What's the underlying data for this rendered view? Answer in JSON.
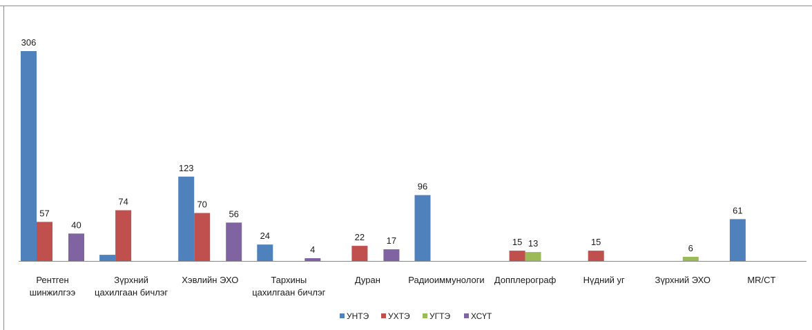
{
  "colors": {
    "border": "#8c8c8c",
    "axis": "#868686"
  },
  "chart_data": {
    "type": "bar",
    "title": "",
    "xlabel": "",
    "ylabel": "",
    "ylim": [
      0,
      320
    ],
    "grid": false,
    "legend_position": "bottom-center",
    "categories": [
      [
        "Рентген",
        "шинжилгээ"
      ],
      [
        "Зүрхний",
        "цахилгаан бичлэг"
      ],
      [
        "Хэвлийн ЭХО"
      ],
      [
        "Тархины",
        "цахилгаан бичлэг"
      ],
      [
        "Дуран"
      ],
      [
        "Радиоиммунологи"
      ],
      [
        "Допплерограф"
      ],
      [
        "Нүдний уг"
      ],
      [
        "Зүрхний ЭХО"
      ],
      [
        "MR/CT"
      ]
    ],
    "series": [
      {
        "name": "УНТЭ",
        "color": "#4f81bd",
        "values": [
          306,
          9,
          123,
          24,
          null,
          96,
          null,
          null,
          null,
          61
        ]
      },
      {
        "name": "УХТЭ",
        "color": "#c0504d",
        "values": [
          57,
          74,
          70,
          null,
          22,
          null,
          15,
          15,
          null,
          null
        ]
      },
      {
        "name": "УГТЭ",
        "color": "#9bbb59",
        "values": [
          null,
          null,
          null,
          null,
          null,
          null,
          13,
          null,
          6,
          null
        ]
      },
      {
        "name": "ХСҮТ",
        "color": "#8064a2",
        "values": [
          40,
          null,
          56,
          4,
          17,
          null,
          null,
          null,
          null,
          null
        ]
      }
    ],
    "data_labels": [
      [
        true,
        false,
        true,
        true,
        false,
        true,
        false,
        false,
        false,
        true
      ],
      [
        true,
        true,
        true,
        false,
        true,
        false,
        true,
        true,
        false,
        false
      ],
      [
        false,
        false,
        false,
        false,
        false,
        false,
        true,
        false,
        true,
        false
      ],
      [
        true,
        false,
        true,
        true,
        true,
        false,
        false,
        false,
        false,
        false
      ]
    ]
  }
}
